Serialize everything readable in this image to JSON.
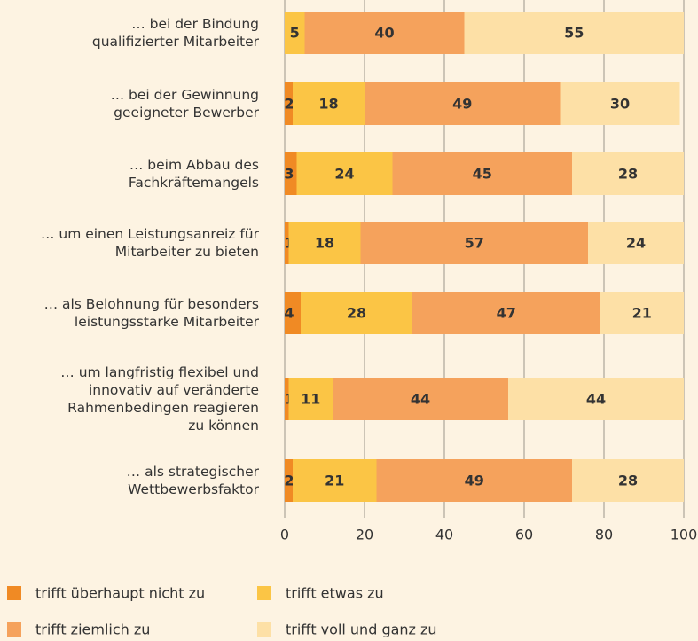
{
  "chart_data": {
    "type": "stacked-barh",
    "categories": [
      "… bei der Bindung\nqualifizierter Mitarbeiter",
      "… bei der Gewinnung\ngeeigneter Bewerber",
      "… beim Abbau des\nFachkräftemangels",
      "… um einen Leistungsanreiz für\nMitarbeiter zu bieten",
      "… als Belohnung für besonders\nleistungsstarke Mitarbeiter",
      "… um langfristig flexibel und\ninnovativ auf veränderte\nRahmenbedingen reagieren\nzu können",
      "… als strategischer\nWettbewerbsfaktor"
    ],
    "series": [
      {
        "name": "trifft überhaupt nicht zu",
        "color": "#f08a24",
        "values": [
          0,
          2,
          3,
          1,
          4,
          1,
          2
        ]
      },
      {
        "name": "trifft etwas zu",
        "color": "#fbc545",
        "values": [
          5,
          18,
          24,
          18,
          28,
          11,
          21
        ]
      },
      {
        "name": "trifft ziemlich zu",
        "color": "#f5a25c",
        "values": [
          40,
          49,
          45,
          57,
          47,
          44,
          49
        ]
      },
      {
        "name": "trifft voll und ganz zu",
        "color": "#fde0a6",
        "values": [
          55,
          30,
          28,
          24,
          21,
          44,
          28
        ]
      }
    ],
    "xlim": [
      0,
      100
    ],
    "xticks": [
      0,
      20,
      40,
      60,
      80,
      100
    ],
    "grid": true
  }
}
